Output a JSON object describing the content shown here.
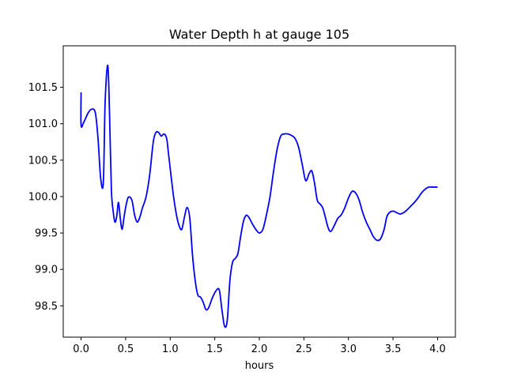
{
  "chart_data": {
    "type": "line",
    "title": "Water Depth h at gauge 105",
    "xlabel": "hours",
    "ylabel": "",
    "xlim": [
      -0.2,
      4.2
    ],
    "ylim": [
      98.07,
      102.07
    ],
    "xticks": [
      0.0,
      0.5,
      1.0,
      1.5,
      2.0,
      2.5,
      3.0,
      3.5,
      4.0
    ],
    "xtick_labels": [
      "0.0",
      "0.5",
      "1.0",
      "1.5",
      "2.0",
      "2.5",
      "3.0",
      "3.5",
      "4.0"
    ],
    "yticks": [
      98.5,
      99.0,
      99.5,
      100.0,
      100.5,
      101.0,
      101.5
    ],
    "ytick_labels": [
      "98.5",
      "99.0",
      "99.5",
      "100.0",
      "100.5",
      "101.0",
      "101.5"
    ],
    "grid": false,
    "series": [
      {
        "color": "#0000ff",
        "x": [
          0.0,
          0.0,
          0.03,
          0.08,
          0.12,
          0.16,
          0.19,
          0.22,
          0.25,
          0.27,
          0.3,
          0.32,
          0.34,
          0.36,
          0.38,
          0.4,
          0.42,
          0.44,
          0.46,
          0.48,
          0.5,
          0.53,
          0.57,
          0.6,
          0.63,
          0.66,
          0.69,
          0.73,
          0.77,
          0.81,
          0.84,
          0.87,
          0.9,
          0.93,
          0.96,
          0.98,
          1.01,
          1.04,
          1.07,
          1.1,
          1.13,
          1.16,
          1.19,
          1.22,
          1.25,
          1.28,
          1.31,
          1.34,
          1.37,
          1.4,
          1.43,
          1.47,
          1.51,
          1.55,
          1.58,
          1.61,
          1.64,
          1.67,
          1.7,
          1.73,
          1.76,
          1.79,
          1.82,
          1.85,
          1.88,
          1.92,
          1.96,
          2.0,
          2.04,
          2.08,
          2.12,
          2.16,
          2.2,
          2.24,
          2.28,
          2.32,
          2.36,
          2.4,
          2.44,
          2.48,
          2.52,
          2.56,
          2.59,
          2.62,
          2.65,
          2.68,
          2.71,
          2.74,
          2.77,
          2.8,
          2.84,
          2.88,
          2.92,
          2.96,
          3.0,
          3.04,
          3.08,
          3.12,
          3.16,
          3.2,
          3.24,
          3.28,
          3.32,
          3.36,
          3.4,
          3.43,
          3.46,
          3.5,
          3.54,
          3.58,
          3.62,
          3.66,
          3.7,
          3.74,
          3.78,
          3.82,
          3.86,
          3.9,
          3.94,
          3.98,
          4.0
        ],
        "y": [
          101.43,
          100.98,
          101.02,
          101.15,
          101.2,
          101.15,
          100.8,
          100.25,
          100.2,
          101.3,
          101.8,
          101.1,
          100.1,
          99.8,
          99.65,
          99.73,
          99.92,
          99.7,
          99.55,
          99.7,
          99.85,
          99.99,
          99.95,
          99.75,
          99.65,
          99.72,
          99.85,
          100.0,
          100.3,
          100.75,
          100.88,
          100.88,
          100.83,
          100.86,
          100.8,
          100.6,
          100.28,
          99.98,
          99.75,
          99.6,
          99.55,
          99.72,
          99.85,
          99.7,
          99.2,
          98.85,
          98.65,
          98.62,
          98.55,
          98.45,
          98.47,
          98.6,
          98.7,
          98.72,
          98.45,
          98.22,
          98.3,
          98.85,
          99.1,
          99.15,
          99.22,
          99.45,
          99.65,
          99.74,
          99.72,
          99.63,
          99.55,
          99.5,
          99.55,
          99.75,
          100.0,
          100.35,
          100.65,
          100.83,
          100.86,
          100.86,
          100.84,
          100.8,
          100.68,
          100.45,
          100.22,
          100.32,
          100.35,
          100.18,
          99.95,
          99.9,
          99.85,
          99.72,
          99.58,
          99.52,
          99.6,
          99.7,
          99.75,
          99.85,
          99.98,
          100.07,
          100.05,
          99.95,
          99.78,
          99.65,
          99.55,
          99.45,
          99.4,
          99.42,
          99.55,
          99.72,
          99.78,
          99.8,
          99.78,
          99.76,
          99.78,
          99.82,
          99.87,
          99.92,
          99.98,
          100.05,
          100.1,
          100.13,
          100.13,
          100.13,
          100.13
        ]
      }
    ]
  }
}
